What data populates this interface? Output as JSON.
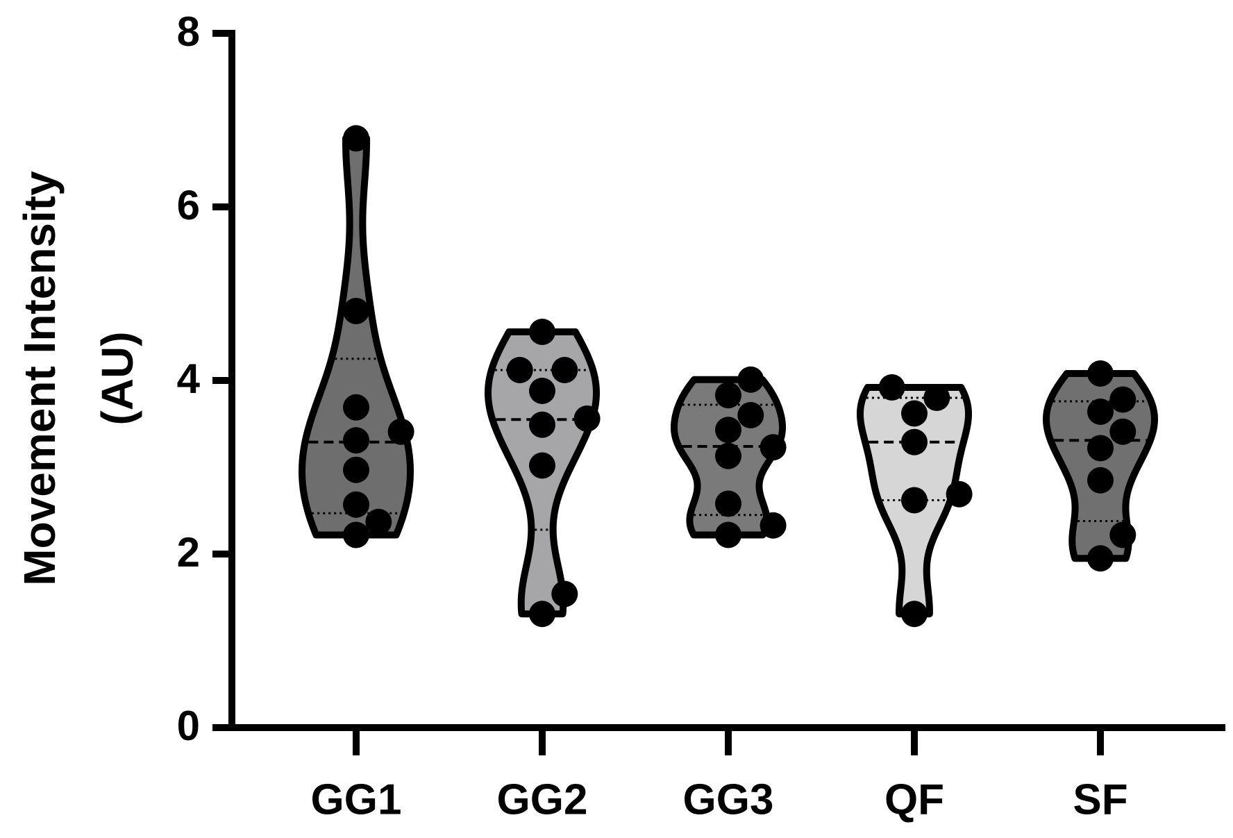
{
  "chart_data": {
    "type": "violin",
    "ylabel": [
      "Movement Intensity",
      "(AU)"
    ],
    "categories": [
      "GG1",
      "GG2",
      "GG3",
      "QF",
      "SF"
    ],
    "groups": [
      {
        "color": "#6e6e6e",
        "values": [
          2.22,
          3.41,
          6.79,
          4.8,
          3.69,
          3.31,
          2.97,
          2.57,
          2.37
        ],
        "median": 3.29,
        "quartiles": [
          2.47,
          4.25
        ]
      },
      {
        "color": "#a6a6a8",
        "values": [
          1.31,
          1.54,
          4.56,
          4.12,
          4.12,
          3.88,
          3.56,
          3.49,
          3.02
        ],
        "median": 3.55,
        "quartiles": [
          2.28,
          4.12
        ]
      },
      {
        "color": "#7a7a7a",
        "values": [
          4.01,
          3.83,
          3.6,
          3.43,
          3.23,
          3.13,
          2.58,
          2.22,
          2.33
        ],
        "median": 3.24,
        "quartiles": [
          2.45,
          3.72
        ]
      },
      {
        "color": "#d6d6d6",
        "values": [
          3.92,
          3.8,
          3.62,
          3.29,
          2.69,
          2.62,
          1.31
        ],
        "median": 3.29,
        "quartiles": [
          2.62,
          3.8
        ]
      },
      {
        "color": "#707070",
        "values": [
          4.08,
          3.78,
          3.64,
          3.41,
          3.22,
          2.85,
          2.22,
          1.95
        ],
        "median": 3.31,
        "quartiles": [
          2.38,
          3.76
        ]
      }
    ],
    "ylim": [
      0,
      8
    ],
    "yticks": [
      0,
      2,
      4,
      6,
      8
    ]
  }
}
